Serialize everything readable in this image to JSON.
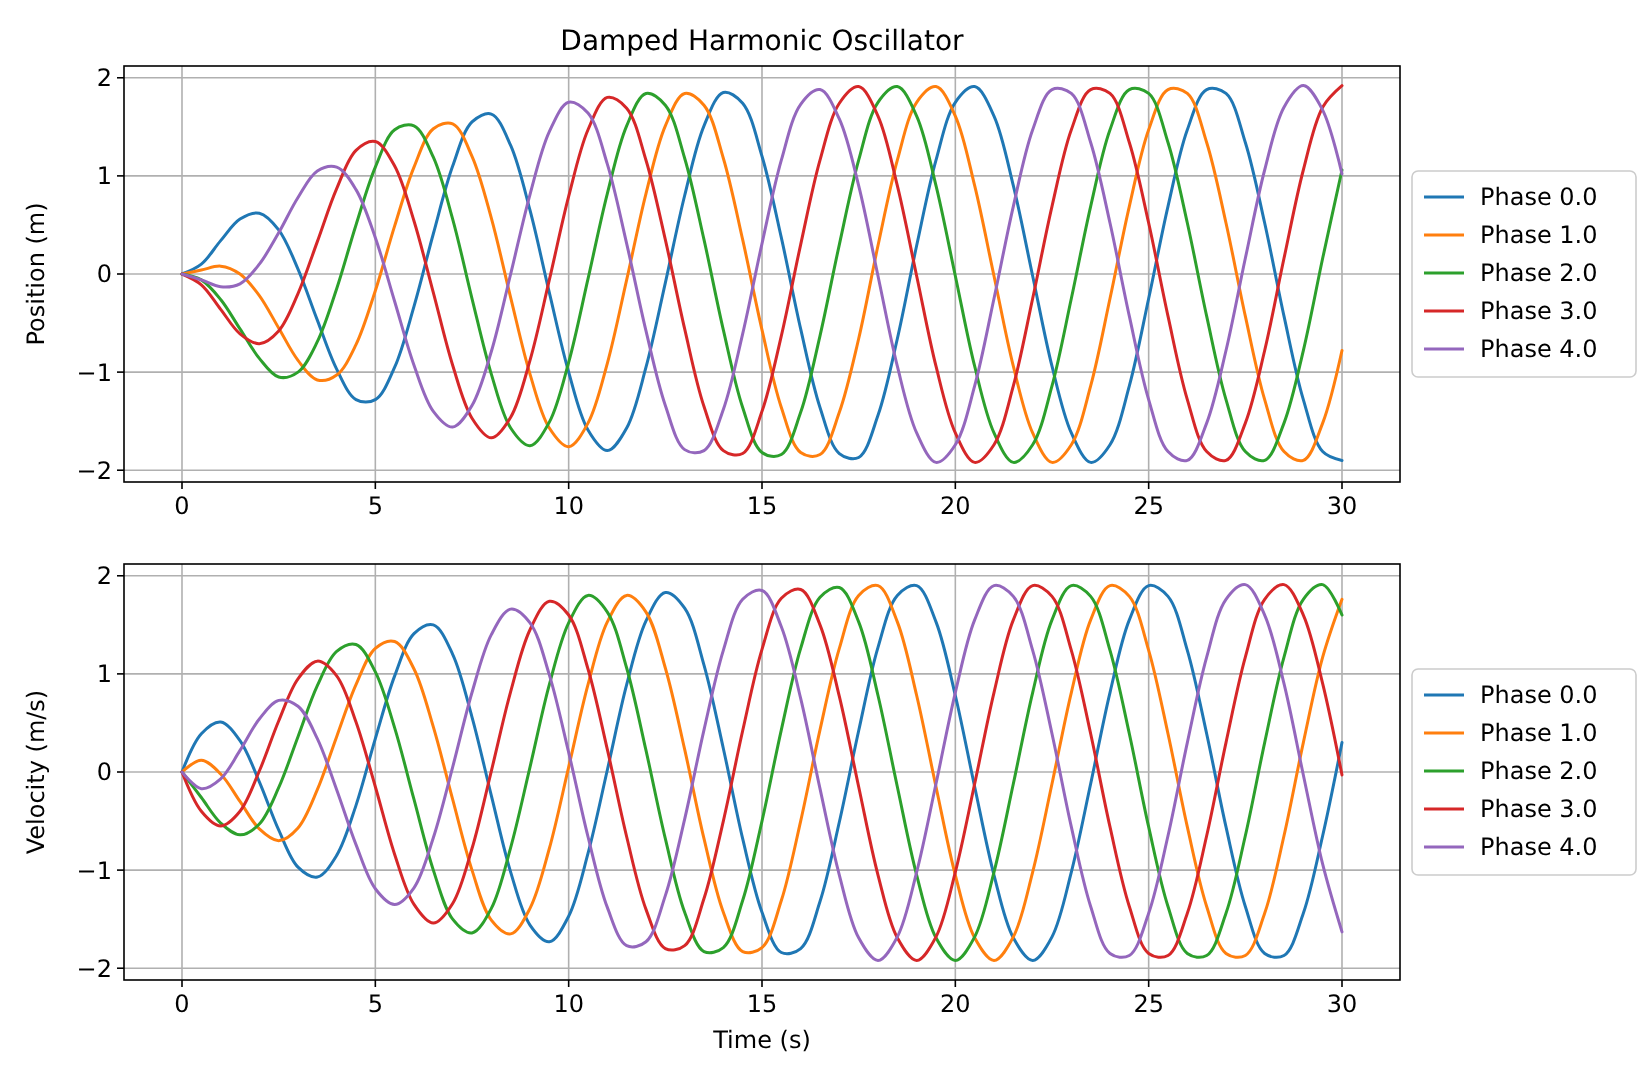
{
  "chart_data": [
    {
      "type": "line",
      "title": "Damped Harmonic Oscillator",
      "ylabel": "Position (m)",
      "x": [
        0,
        0.5,
        1,
        1.5,
        2,
        2.5,
        3,
        3.5,
        4,
        4.5,
        5,
        5.5,
        6,
        6.5,
        7,
        7.5,
        8,
        8.5,
        9,
        9.5,
        10,
        10.5,
        11,
        11.5,
        12,
        12.5,
        13,
        13.5,
        14,
        14.5,
        15,
        15.5,
        16,
        16.5,
        17,
        17.5,
        18,
        18.5,
        19,
        19.5,
        20,
        20.5,
        21,
        21.5,
        22,
        22.5,
        23,
        23.5,
        24,
        24.5,
        25,
        25.5,
        26,
        26.5,
        27,
        27.5,
        28,
        28.5,
        29,
        29.5,
        30
      ],
      "series": [
        {
          "name": "Phase 0.0",
          "color": "#1f77b4",
          "values": [
            0,
            0.1,
            0.34,
            0.56,
            0.62,
            0.45,
            0.05,
            -0.47,
            -0.97,
            -1.28,
            -1.28,
            -0.95,
            -0.33,
            0.41,
            1.1,
            1.55,
            1.63,
            1.31,
            0.65,
            -0.19,
            -1.0,
            -1.59,
            -1.8,
            -1.57,
            -0.95,
            -0.09,
            0.8,
            1.51,
            1.85,
            1.74,
            1.2,
            0.37,
            -0.56,
            -1.36,
            -1.83,
            -1.87,
            -1.44,
            -0.66,
            0.29,
            1.16,
            1.75,
            1.91,
            1.61,
            0.9,
            -0.02,
            -0.94,
            -1.62,
            -1.92,
            -1.74,
            -1.14,
            -0.25,
            0.69,
            1.47,
            1.88,
            1.84,
            1.34,
            0.52,
            -0.43,
            -1.28,
            -1.81,
            -1.9
          ]
        },
        {
          "name": "Phase 1.0",
          "color": "#ff7f0e",
          "values": [
            0,
            0.04,
            0.08,
            0.0,
            -0.22,
            -0.55,
            -0.88,
            -1.08,
            -1.03,
            -0.72,
            -0.17,
            0.49,
            1.09,
            1.48,
            1.53,
            1.2,
            0.57,
            -0.24,
            -1.02,
            -1.57,
            -1.76,
            -1.52,
            -0.91,
            -0.06,
            0.82,
            1.51,
            1.84,
            1.72,
            1.18,
            0.35,
            -0.57,
            -1.36,
            -1.82,
            -1.84,
            -1.41,
            -0.66,
            0.29,
            1.16,
            1.75,
            1.91,
            1.61,
            0.9,
            -0.02,
            -0.94,
            -1.62,
            -1.92,
            -1.74,
            -1.14,
            -0.25,
            0.69,
            1.47,
            1.88,
            1.84,
            1.34,
            0.52,
            -0.43,
            -1.28,
            -1.81,
            -1.9,
            -1.52,
            -0.78
          ]
        },
        {
          "name": "Phase 2.0",
          "color": "#2ca02c",
          "values": [
            0,
            -0.06,
            -0.26,
            -0.56,
            -0.86,
            -1.05,
            -1.0,
            -0.69,
            -0.15,
            0.5,
            1.09,
            1.47,
            1.51,
            1.19,
            0.56,
            -0.25,
            -1.02,
            -1.57,
            -1.75,
            -1.51,
            -0.9,
            -0.05,
            0.82,
            1.51,
            1.84,
            1.72,
            1.18,
            0.35,
            -0.57,
            -1.36,
            -1.82,
            -1.84,
            -1.41,
            -0.63,
            0.3,
            1.16,
            1.75,
            1.91,
            1.61,
            0.9,
            -0.02,
            -0.94,
            -1.62,
            -1.92,
            -1.74,
            -1.14,
            -0.25,
            0.69,
            1.47,
            1.88,
            1.84,
            1.34,
            0.52,
            -0.43,
            -1.28,
            -1.81,
            -1.9,
            -1.52,
            -0.78,
            0.16,
            1.06
          ]
        },
        {
          "name": "Phase 3.0",
          "color": "#d62728",
          "values": [
            0,
            -0.11,
            -0.36,
            -0.61,
            -0.71,
            -0.58,
            -0.2,
            0.33,
            0.87,
            1.26,
            1.35,
            1.1,
            0.54,
            -0.19,
            -0.93,
            -1.47,
            -1.67,
            -1.46,
            -0.88,
            -0.06,
            0.79,
            1.47,
            1.8,
            1.69,
            1.16,
            0.35,
            -0.56,
            -1.35,
            -1.8,
            -1.83,
            -1.4,
            -0.63,
            0.3,
            1.16,
            1.74,
            1.91,
            1.61,
            0.9,
            -0.02,
            -0.94,
            -1.62,
            -1.92,
            -1.74,
            -1.14,
            -0.25,
            0.69,
            1.47,
            1.88,
            1.84,
            1.34,
            0.52,
            -0.43,
            -1.28,
            -1.81,
            -1.9,
            -1.52,
            -0.78,
            0.16,
            1.06,
            1.7,
            1.92
          ]
        },
        {
          "name": "Phase 4.0",
          "color": "#9467bd",
          "values": [
            0,
            -0.06,
            -0.13,
            -0.1,
            0.1,
            0.42,
            0.78,
            1.05,
            1.09,
            0.86,
            0.37,
            -0.28,
            -0.93,
            -1.4,
            -1.56,
            -1.34,
            -0.79,
            0.0,
            0.81,
            1.45,
            1.75,
            1.64,
            1.12,
            0.31,
            -0.58,
            -1.34,
            -1.79,
            -1.8,
            -1.38,
            -0.61,
            0.31,
            1.16,
            1.73,
            1.88,
            1.58,
            0.9,
            -0.02,
            -0.94,
            -1.62,
            -1.92,
            -1.74,
            -1.14,
            -0.25,
            0.69,
            1.47,
            1.88,
            1.84,
            1.34,
            0.52,
            -0.43,
            -1.28,
            -1.81,
            -1.9,
            -1.52,
            -0.78,
            0.16,
            1.06,
            1.7,
            1.92,
            1.67,
            1.02
          ]
        }
      ],
      "xlim": [
        -1.5,
        31.5
      ],
      "xticks": [
        0,
        5,
        10,
        15,
        20,
        25,
        30
      ],
      "ylim": [
        -2.12,
        2.12
      ],
      "yticks": [
        -2,
        -1,
        0,
        1,
        2
      ],
      "grid": true,
      "legend": "right",
      "marker": "none",
      "line_style": "solid"
    },
    {
      "type": "line",
      "xlabel": "Time (s)",
      "ylabel": "Velocity (m/s)",
      "x": [
        0,
        0.5,
        1,
        1.5,
        2,
        2.5,
        3,
        3.5,
        4,
        4.5,
        5,
        5.5,
        6,
        6.5,
        7,
        7.5,
        8,
        8.5,
        9,
        9.5,
        10,
        10.5,
        11,
        11.5,
        12,
        12.5,
        13,
        13.5,
        14,
        14.5,
        15,
        15.5,
        16,
        16.5,
        17,
        17.5,
        18,
        18.5,
        19,
        19.5,
        20,
        20.5,
        21,
        21.5,
        22,
        22.5,
        23,
        23.5,
        24,
        24.5,
        25,
        25.5,
        26,
        26.5,
        27,
        27.5,
        28,
        28.5,
        29,
        29.5,
        30
      ],
      "series": [
        {
          "name": "Phase 0.0",
          "color": "#1f77b4",
          "values": [
            0,
            0.39,
            0.51,
            0.32,
            -0.1,
            -0.59,
            -0.97,
            -1.07,
            -0.85,
            -0.34,
            0.34,
            0.98,
            1.41,
            1.5,
            1.2,
            0.56,
            -0.24,
            -1.02,
            -1.56,
            -1.73,
            -1.47,
            -0.83,
            0.02,
            0.89,
            1.54,
            1.83,
            1.67,
            1.09,
            0.24,
            -0.68,
            -1.43,
            -1.84,
            -1.8,
            -1.32,
            -0.51,
            0.42,
            1.27,
            1.8,
            1.9,
            1.53,
            0.78,
            -0.15,
            -1.05,
            -1.69,
            -1.92,
            -1.68,
            -1.02,
            -0.12,
            0.81,
            1.55,
            1.9,
            1.79,
            1.24,
            0.39,
            -0.56,
            -1.37,
            -1.85,
            -1.87,
            -1.44,
            -0.65,
            0.3
          ]
        },
        {
          "name": "Phase 1.0",
          "color": "#ff7f0e",
          "values": [
            0,
            0.12,
            -0.02,
            -0.3,
            -0.58,
            -0.7,
            -0.57,
            -0.18,
            0.36,
            0.89,
            1.26,
            1.33,
            1.05,
            0.46,
            -0.28,
            -1.0,
            -1.51,
            -1.65,
            -1.39,
            -0.78,
            0.05,
            0.89,
            1.53,
            1.8,
            1.63,
            1.06,
            0.23,
            -0.68,
            -1.43,
            -1.83,
            -1.79,
            -1.31,
            -0.5,
            0.43,
            1.26,
            1.8,
            1.9,
            1.53,
            0.78,
            -0.15,
            -1.05,
            -1.69,
            -1.92,
            -1.68,
            -1.02,
            -0.12,
            0.81,
            1.55,
            1.9,
            1.79,
            1.24,
            0.39,
            -0.56,
            -1.37,
            -1.85,
            -1.87,
            -1.44,
            -0.65,
            0.3,
            1.17,
            1.76
          ]
        },
        {
          "name": "Phase 2.0",
          "color": "#2ca02c",
          "values": [
            0,
            -0.26,
            -0.52,
            -0.64,
            -0.53,
            -0.16,
            0.36,
            0.88,
            1.23,
            1.3,
            1.02,
            0.45,
            -0.28,
            -1.0,
            -1.5,
            -1.64,
            -1.39,
            -0.77,
            0.05,
            0.89,
            1.52,
            1.8,
            1.63,
            1.06,
            0.22,
            -0.68,
            -1.43,
            -1.83,
            -1.79,
            -1.31,
            -0.5,
            0.43,
            1.26,
            1.78,
            1.88,
            1.53,
            0.78,
            -0.15,
            -1.05,
            -1.69,
            -1.92,
            -1.68,
            -1.02,
            -0.12,
            0.81,
            1.55,
            1.9,
            1.79,
            1.24,
            0.39,
            -0.56,
            -1.37,
            -1.85,
            -1.87,
            -1.44,
            -0.65,
            0.3,
            1.17,
            1.76,
            1.91,
            1.6
          ]
        },
        {
          "name": "Phase 3.0",
          "color": "#d62728",
          "values": [
            0,
            -0.4,
            -0.55,
            -0.4,
            0.01,
            0.52,
            0.95,
            1.13,
            0.98,
            0.51,
            -0.15,
            -0.84,
            -1.35,
            -1.54,
            -1.34,
            -0.78,
            0.01,
            0.82,
            1.45,
            1.74,
            1.6,
            1.05,
            0.23,
            -0.66,
            -1.4,
            -1.8,
            -1.77,
            -1.29,
            -0.5,
            0.42,
            1.25,
            1.77,
            1.86,
            1.5,
            0.77,
            -0.15,
            -1.05,
            -1.69,
            -1.92,
            -1.68,
            -1.02,
            -0.12,
            0.81,
            1.55,
            1.9,
            1.79,
            1.24,
            0.39,
            -0.56,
            -1.37,
            -1.85,
            -1.87,
            -1.44,
            -0.65,
            0.3,
            1.17,
            1.76,
            1.91,
            1.6,
            0.9,
            -0.03
          ]
        },
        {
          "name": "Phase 4.0",
          "color": "#9467bd",
          "values": [
            0,
            -0.17,
            -0.07,
            0.22,
            0.54,
            0.73,
            0.67,
            0.34,
            -0.18,
            -0.74,
            -1.19,
            -1.35,
            -1.18,
            -0.67,
            0.05,
            0.81,
            1.4,
            1.66,
            1.52,
            0.99,
            0.2,
            -0.66,
            -1.38,
            -1.77,
            -1.73,
            -1.26,
            -0.48,
            0.43,
            1.24,
            1.76,
            1.85,
            1.48,
            0.75,
            -0.17,
            -1.05,
            -1.69,
            -1.92,
            -1.68,
            -1.02,
            -0.12,
            0.81,
            1.55,
            1.9,
            1.79,
            1.24,
            0.39,
            -0.56,
            -1.37,
            -1.85,
            -1.87,
            -1.44,
            -0.65,
            0.3,
            1.17,
            1.76,
            1.91,
            1.6,
            0.9,
            -0.03,
            -0.94,
            -1.63
          ]
        }
      ],
      "xlim": [
        -1.5,
        31.5
      ],
      "xticks": [
        0,
        5,
        10,
        15,
        20,
        25,
        30
      ],
      "ylim": [
        -2.12,
        2.12
      ],
      "yticks": [
        -2,
        -1,
        0,
        1,
        2
      ],
      "grid": true,
      "legend": "right",
      "marker": "none",
      "line_style": "solid"
    }
  ]
}
